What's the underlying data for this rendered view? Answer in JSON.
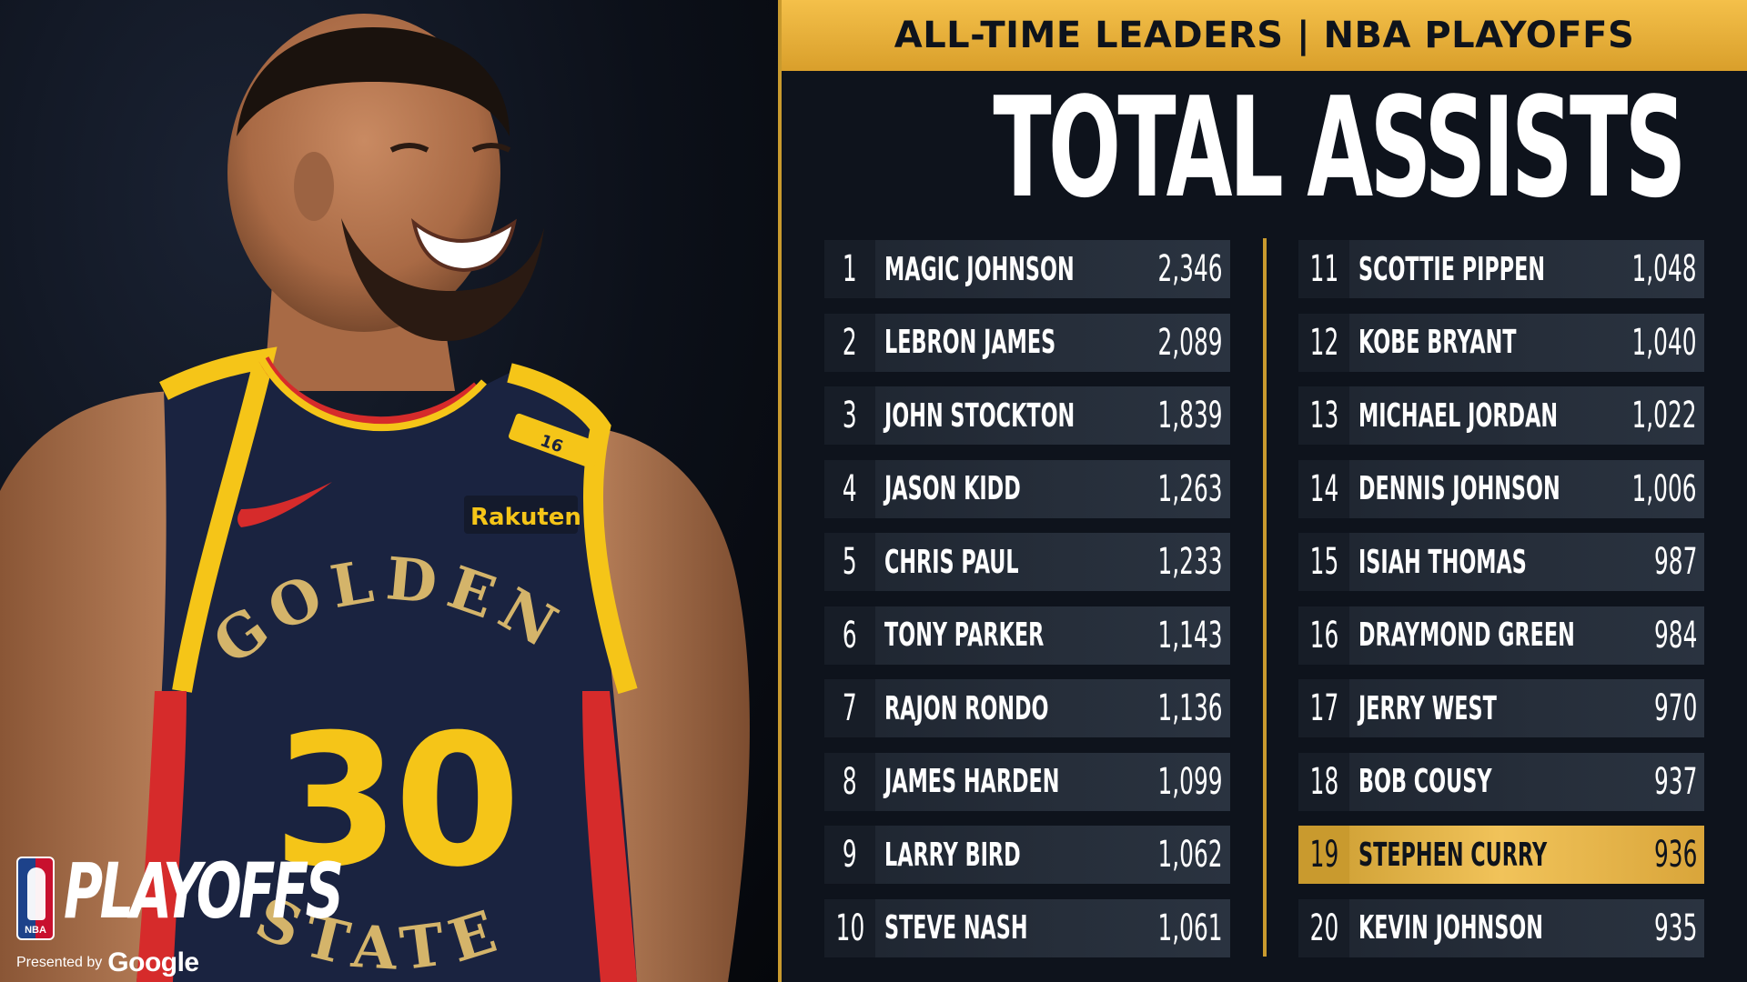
{
  "brand": {
    "playoffs_word": "PLAYOFFS",
    "nba_mark": "NBA",
    "presented_by": "Presented by",
    "sponsor": "Google"
  },
  "jersey": {
    "sponsor_patch": "Rakuten",
    "team_word_top": "GOLDEN",
    "team_word_bottom": "STATE",
    "number": "30",
    "strap_number": "16"
  },
  "header": {
    "banner": "ALL-TIME LEADERS | NBA PLAYOFFS",
    "title": "TOTAL ASSISTS"
  },
  "colors": {
    "gold": "#c99a2e",
    "banner_gold": "#f4c04a",
    "background": "#0e131c",
    "row": "#262e3a",
    "navy_jersey": "#1a2340",
    "jersey_red": "#d62b2b",
    "jersey_yellow": "#f5c518"
  },
  "leaders": {
    "left": [
      {
        "rank": "1",
        "name": "MAGIC JOHNSON",
        "value": "2,346"
      },
      {
        "rank": "2",
        "name": "LEBRON JAMES",
        "value": "2,089"
      },
      {
        "rank": "3",
        "name": "JOHN STOCKTON",
        "value": "1,839"
      },
      {
        "rank": "4",
        "name": "JASON KIDD",
        "value": "1,263"
      },
      {
        "rank": "5",
        "name": "CHRIS PAUL",
        "value": "1,233"
      },
      {
        "rank": "6",
        "name": "TONY PARKER",
        "value": "1,143"
      },
      {
        "rank": "7",
        "name": "RAJON RONDO",
        "value": "1,136"
      },
      {
        "rank": "8",
        "name": "JAMES HARDEN",
        "value": "1,099"
      },
      {
        "rank": "9",
        "name": "LARRY BIRD",
        "value": "1,062"
      },
      {
        "rank": "10",
        "name": "STEVE NASH",
        "value": "1,061"
      }
    ],
    "right": [
      {
        "rank": "11",
        "name": "SCOTTIE PIPPEN",
        "value": "1,048"
      },
      {
        "rank": "12",
        "name": "KOBE BRYANT",
        "value": "1,040"
      },
      {
        "rank": "13",
        "name": "MICHAEL JORDAN",
        "value": "1,022"
      },
      {
        "rank": "14",
        "name": "DENNIS JOHNSON",
        "value": "1,006"
      },
      {
        "rank": "15",
        "name": "ISIAH THOMAS",
        "value": "987"
      },
      {
        "rank": "16",
        "name": "DRAYMOND GREEN",
        "value": "984"
      },
      {
        "rank": "17",
        "name": "JERRY WEST",
        "value": "970"
      },
      {
        "rank": "18",
        "name": "BOB COUSY",
        "value": "937"
      },
      {
        "rank": "19",
        "name": "STEPHEN CURRY",
        "value": "936",
        "highlight": true
      },
      {
        "rank": "20",
        "name": "KEVIN JOHNSON",
        "value": "935"
      }
    ]
  }
}
